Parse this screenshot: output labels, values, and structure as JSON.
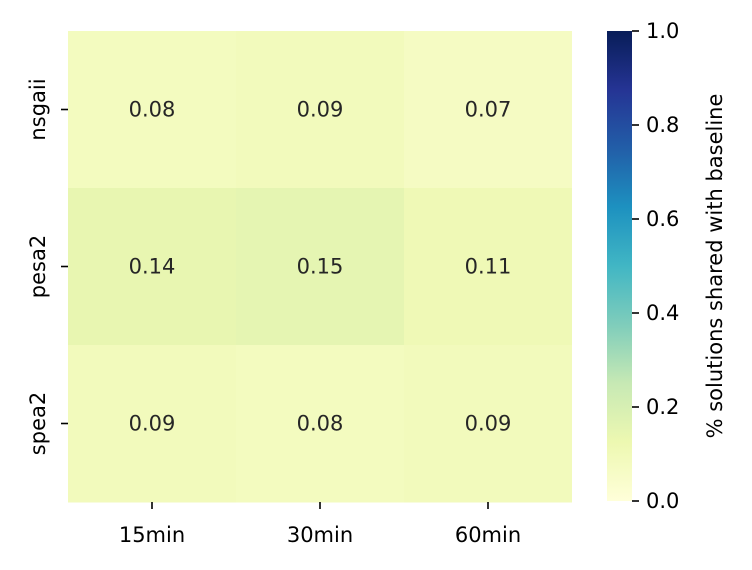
{
  "chart_data": {
    "type": "heatmap",
    "title": "",
    "xlabel": "",
    "ylabel": "",
    "x_categories": [
      "15min",
      "30min",
      "60min"
    ],
    "y_categories": [
      "nsgaii",
      "pesa2",
      "spea2"
    ],
    "values": [
      [
        0.08,
        0.09,
        0.07
      ],
      [
        0.14,
        0.15,
        0.11
      ],
      [
        0.09,
        0.08,
        0.09
      ]
    ],
    "annotations": [
      [
        "0.08",
        "0.09",
        "0.07"
      ],
      [
        "0.14",
        "0.15",
        "0.11"
      ],
      [
        "0.09",
        "0.08",
        "0.09"
      ]
    ],
    "colormap": "YlGnBu",
    "colorbar": {
      "label": "% solutions shared with baseline",
      "range": [
        0.0,
        1.0
      ],
      "ticks": [
        "0.0",
        "0.2",
        "0.4",
        "0.6",
        "0.8",
        "1.0"
      ],
      "tick_values": [
        0.0,
        0.2,
        0.4,
        0.6,
        0.8,
        1.0
      ],
      "stops": [
        "#ffffd9",
        "#edf8b1",
        "#c7e9b4",
        "#7fcdbb",
        "#41b6c4",
        "#1d91c0",
        "#225ea8",
        "#253494",
        "#081d58"
      ]
    },
    "text_color": "#262626",
    "tick_color": "#000000",
    "grid": false
  }
}
